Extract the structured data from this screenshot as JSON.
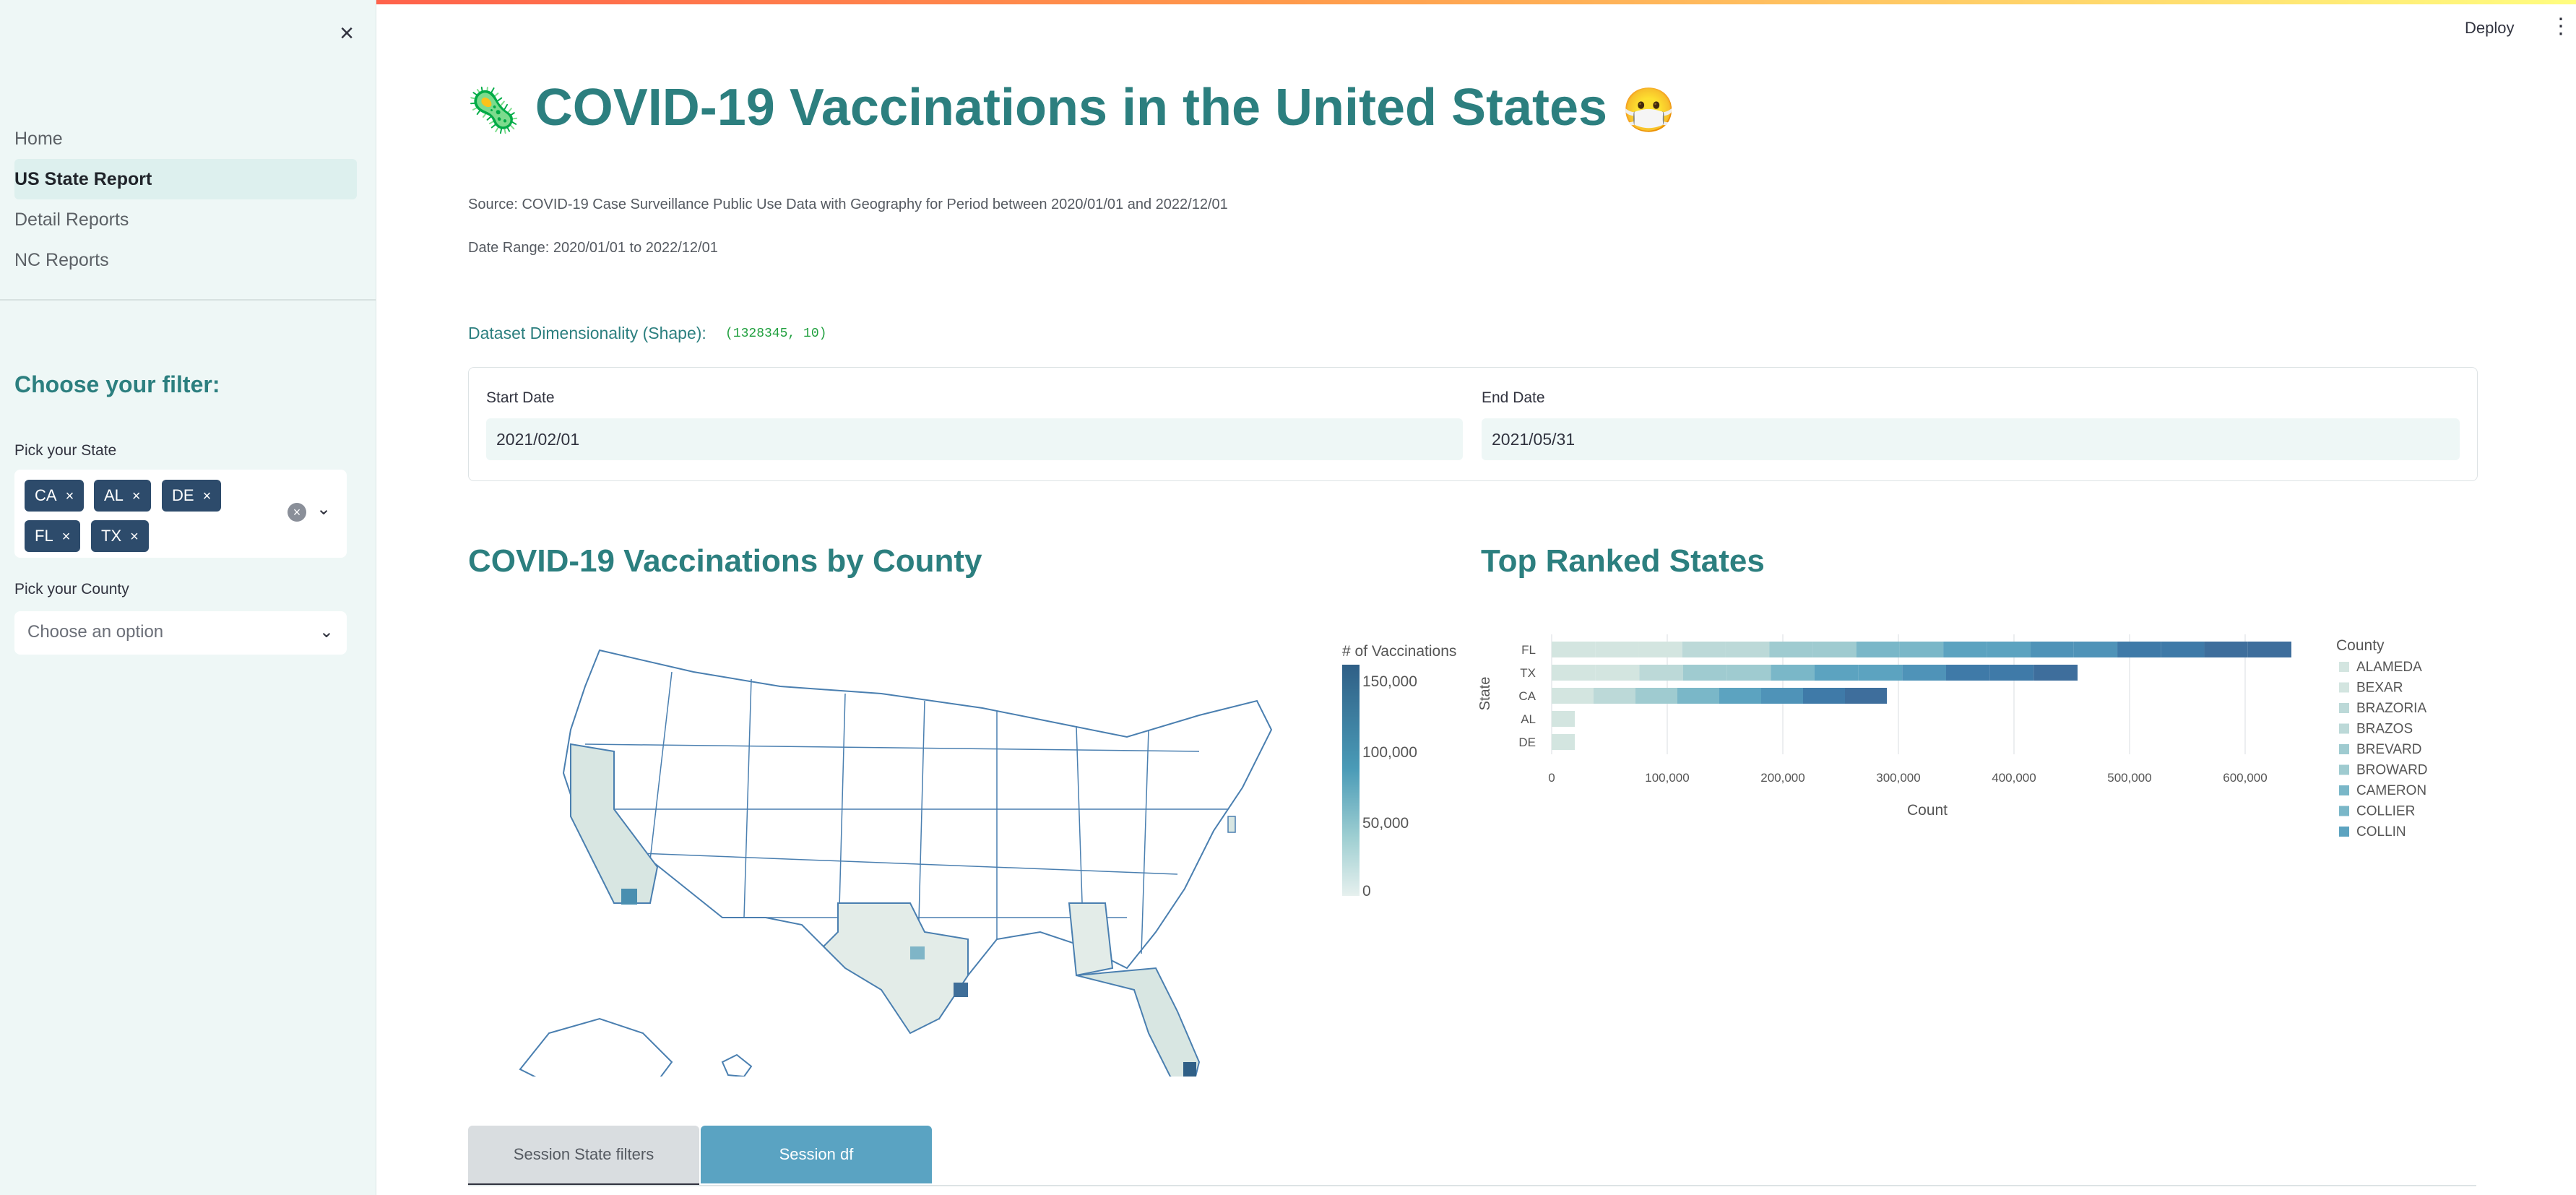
{
  "app": {
    "deploy_label": "Deploy"
  },
  "sidebar": {
    "nav": [
      {
        "label": "Home"
      },
      {
        "label": "US State Report"
      },
      {
        "label": "Detail Reports"
      },
      {
        "label": "NC Reports"
      }
    ],
    "active_index": 1,
    "filter_title": "Choose your filter:",
    "state_label": "Pick your State",
    "states": [
      "CA",
      "AL",
      "DE",
      "FL",
      "TX"
    ],
    "county_label": "Pick your County",
    "county_placeholder": "Choose an option"
  },
  "main": {
    "title": "COVID-19 Vaccinations in the United States",
    "title_emoji_left": "🦠",
    "title_emoji_right": "😷",
    "source": "Source: COVID-19 Case Surveillance Public Use Data with Geography for Period between 2020/01/01 and 2022/12/01",
    "date_range": "Date Range: 2020/01/01 to 2022/12/01",
    "shape_label": "Dataset Dimensionality (Shape):",
    "shape_value": "(1328345, 10)",
    "start_label": "Start Date",
    "start_value": "2021/02/01",
    "end_label": "End Date",
    "end_value": "2021/05/31",
    "map_title": "COVID-19 Vaccinations by County",
    "bar_title": "Top Ranked States",
    "tabs": [
      "Session State filters",
      "Session df"
    ]
  },
  "chart_data": [
    {
      "type": "heatmap",
      "title": "COVID-19 Vaccinations by County",
      "legend_title": "# of Vaccinations",
      "colorbar_ticks": [
        "150,000",
        "100,000",
        "50,000",
        "0"
      ],
      "colorbar_range": [
        0,
        160000
      ],
      "colors": [
        "#e6f0ee",
        "#9fcfd2",
        "#4a9bb7",
        "#2f5f86"
      ]
    },
    {
      "type": "bar",
      "title": "Top Ranked States",
      "orientation": "horizontal",
      "stacked": true,
      "categories": [
        "FL",
        "TX",
        "CA",
        "AL",
        "DE"
      ],
      "values": [
        640000,
        455000,
        290000,
        20000,
        20000
      ],
      "xlabel": "Count",
      "ylabel": "State",
      "xlim": [
        0,
        650000
      ],
      "x_ticks": [
        "0",
        "100,000",
        "200,000",
        "300,000",
        "400,000",
        "500,000",
        "600,000"
      ],
      "legend_title": "County",
      "legend": [
        "ALAMEDA",
        "BEXAR",
        "BRAZORIA",
        "BRAZOS",
        "BREVARD",
        "BROWARD",
        "CAMERON",
        "COLLIER",
        "COLLIN"
      ]
    }
  ]
}
